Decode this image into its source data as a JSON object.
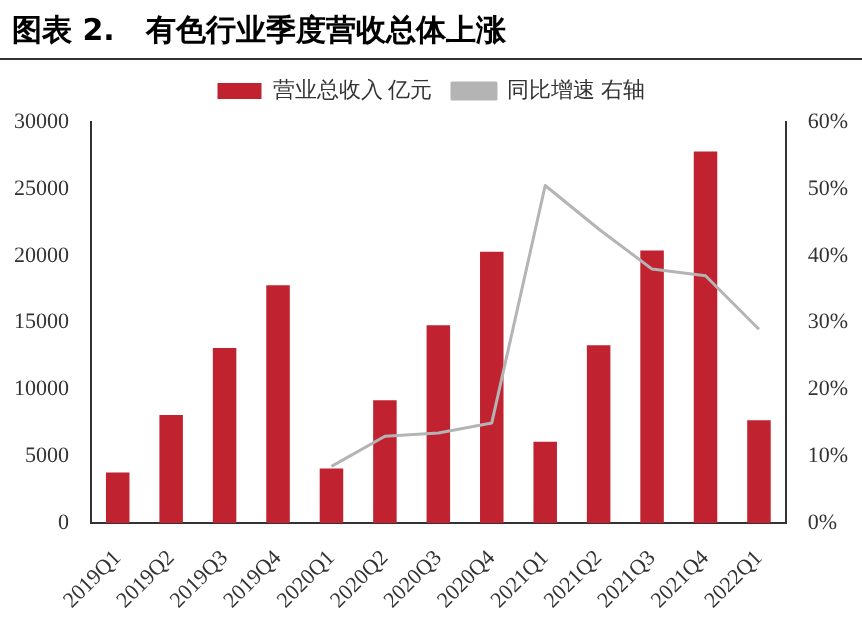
{
  "chart_data": {
    "type": "bar",
    "title": "图表 2.   有色行业季度营收总体上涨",
    "categories": [
      "2019Q1",
      "2019Q2",
      "2019Q3",
      "2019Q4",
      "2020Q1",
      "2020Q2",
      "2020Q3",
      "2020Q4",
      "2021Q1",
      "2021Q2",
      "2021Q3",
      "2021Q4",
      "2022Q1"
    ],
    "series": [
      {
        "name": "营业总收入 亿元",
        "color": "#c0232f",
        "values": [
          3800,
          8100,
          13100,
          17800,
          4100,
          9200,
          14800,
          20300,
          6100,
          13300,
          20400,
          27800,
          7700
        ]
      },
      {
        "name": "同比增速 右轴",
        "type": "line",
        "axis": "y2",
        "color": "#b4b4b4",
        "values": [
          null,
          null,
          null,
          null,
          8.5,
          13,
          13.5,
          15,
          50.5,
          44,
          38,
          37,
          29
        ]
      }
    ],
    "ylim": [
      0,
      30000
    ],
    "yticks": [
      0,
      5000,
      10000,
      15000,
      20000,
      25000,
      30000
    ],
    "y2lim": [
      0,
      60
    ],
    "y2ticks": [
      {
        "value": 0,
        "label": "0%"
      },
      {
        "value": 10,
        "label": "10%"
      },
      {
        "value": 20,
        "label": "20%"
      },
      {
        "value": 30,
        "label": "30%"
      },
      {
        "value": 40,
        "label": "40%"
      },
      {
        "value": 50,
        "label": "50%"
      },
      {
        "value": 60,
        "label": "60%"
      }
    ],
    "legend": "top",
    "grid": false,
    "marker": "none"
  }
}
